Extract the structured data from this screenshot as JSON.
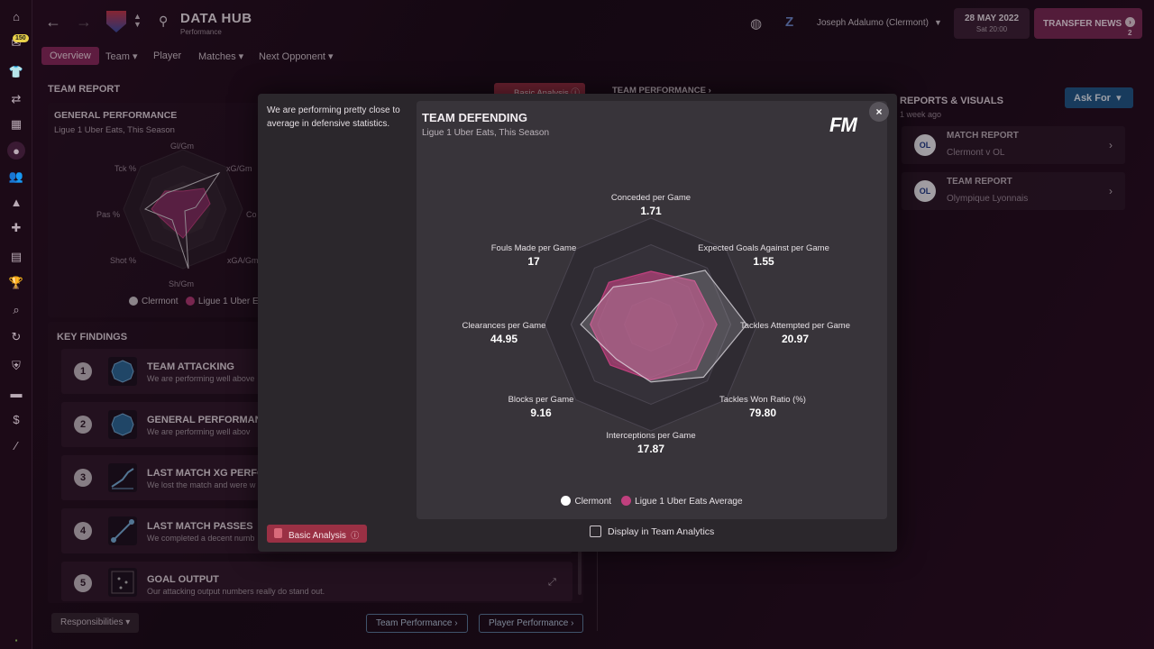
{
  "topbar": {
    "title": "DATA HUB",
    "subtitle": "Performance",
    "manager": "Joseph Adalumo (Clermont)",
    "date": "28 MAY 2022",
    "time": "Sat 20:00",
    "transfer_news": "TRANSFER NEWS",
    "transfer_count": "2",
    "inbox_badge": "150"
  },
  "tabs": [
    {
      "label": "Overview"
    },
    {
      "label": "Team"
    },
    {
      "label": "Player"
    },
    {
      "label": "Matches"
    },
    {
      "label": "Next Opponent"
    }
  ],
  "team_report": {
    "title": "TEAM REPORT",
    "general_title": "GENERAL PERFORMANCE",
    "general_sub": "Ligue 1 Uber Eats, This Season",
    "axis_labels": [
      "Gl/Gm",
      "xG/Gm",
      "Co",
      "xGA/Gm",
      "Sh/Gm",
      "Shot %",
      "Pas %",
      "Tck %"
    ],
    "legend_clermont": "Clermont",
    "legend_league": "Ligue 1 Uber E"
  },
  "key_findings": {
    "title": "KEY FINDINGS",
    "items": [
      {
        "num": "1",
        "title": "TEAM ATTACKING",
        "sub": "We are performing well above"
      },
      {
        "num": "2",
        "title": "GENERAL PERFORMAN",
        "sub": "We are performing well abov"
      },
      {
        "num": "3",
        "title": "LAST MATCH XG PERFO",
        "sub": "We lost the match and were w"
      },
      {
        "num": "4",
        "title": "LAST MATCH PASSES",
        "sub": "We completed a decent numb"
      },
      {
        "num": "5",
        "title": "GOAL OUTPUT",
        "sub": "Our attacking output numbers really do stand out."
      }
    ]
  },
  "bottom": {
    "responsibilities": "Responsibilities",
    "team_performance": "Team Performance",
    "player_performance": "Player Performance"
  },
  "middle": {
    "basic_analysis": "Basic Analysis",
    "team_performance_link": "TEAM PERFORMANCE"
  },
  "reports": {
    "title": "REPORTS & VISUALS",
    "updated": "1 week ago",
    "ask_for": "Ask For",
    "items": [
      {
        "title": "MATCH REPORT",
        "sub": "Clermont v OL",
        "crest": "OL"
      },
      {
        "title": "TEAM REPORT",
        "sub": "Olympique Lyonnais",
        "crest": "OL"
      }
    ]
  },
  "overlay": {
    "description": "We are performing pretty close to average in defensive statistics.",
    "logo": "FM",
    "close_icon": "×",
    "basic_analysis": "Basic Analysis",
    "display_checkbox": "Display in Team Analytics"
  },
  "chart_data": {
    "type": "radar",
    "title": "TEAM DEFENDING",
    "subtitle": "Ligue 1 Uber Eats, This Season",
    "axes": [
      {
        "label": "Conceded per Game",
        "value": "1.71"
      },
      {
        "label": "Expected Goals Against per Game",
        "value": "1.55"
      },
      {
        "label": "Tackles Attempted per Game",
        "value": "20.97"
      },
      {
        "label": "Tackles Won Ratio (%)",
        "value": "79.80"
      },
      {
        "label": "Interceptions per Game",
        "value": "17.87"
      },
      {
        "label": "Blocks per Game",
        "value": "9.16"
      },
      {
        "label": "Clearances per Game",
        "value": "44.95"
      },
      {
        "label": "Fouls Made per Game",
        "value": "17"
      }
    ],
    "series": [
      {
        "name": "Clermont",
        "color": "#e6e2e8",
        "values": [
          0.4,
          0.72,
          0.9,
          0.7,
          0.54,
          0.46,
          0.66,
          0.5
        ]
      },
      {
        "name": "Ligue 1 Uber Eats Average",
        "color": "#c0407e",
        "values": [
          0.5,
          0.58,
          0.62,
          0.6,
          0.52,
          0.54,
          0.57,
          0.56
        ]
      }
    ],
    "rings": 4,
    "legend_position": "bottom"
  }
}
